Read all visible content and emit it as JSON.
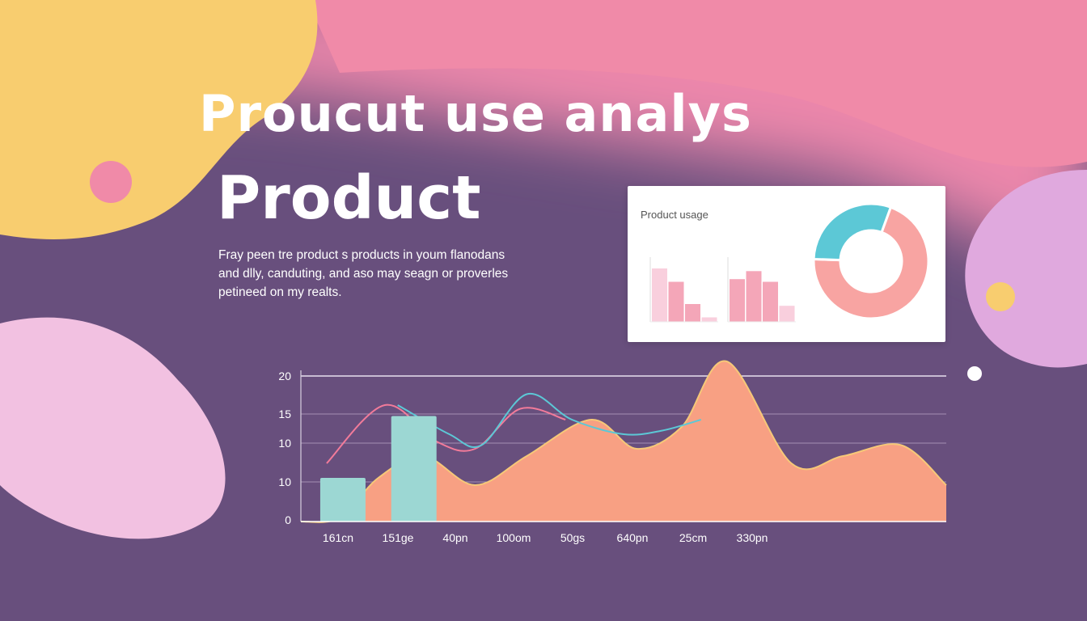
{
  "heading": {
    "title": "Proucut use analys",
    "subtitle": "Product"
  },
  "description": {
    "line1": "Fray peen tre product s products in youm flanodans",
    "line2": "and dlly, canduting, and aso may seagn or proverles",
    "line3": "petineed on my realts."
  },
  "colors": {
    "background": "#684f7d",
    "yellow": "#f8cd6f",
    "pink": "#f08aa8",
    "area": "#f8a083",
    "bar": "#9cd7d3",
    "line_pink": "#f27b9a",
    "line_blue": "#5cc8d6"
  },
  "chart_data": [
    {
      "type": "area",
      "title": "",
      "xlabel": "",
      "ylabel": "",
      "y_tick_labels": [
        "20",
        "15",
        "10",
        "10",
        "0"
      ],
      "categories": [
        "161cn",
        "151ge",
        "40pn",
        "100om",
        "50gs",
        "640pn",
        "25cm",
        "330pn"
      ],
      "bars": {
        "x_positions": [
          0.3,
          1.4
        ],
        "values": [
          6,
          14.5
        ]
      },
      "area": {
        "x": [
          0,
          0.6,
          1.2,
          1.9,
          2.7,
          3.5,
          4.5,
          5.2,
          5.9,
          6.6,
          7.6,
          8.4,
          9.3,
          10.0
        ],
        "y": [
          0,
          0.5,
          6,
          9,
          5,
          9,
          14,
          10,
          13,
          22,
          8,
          9,
          10.5,
          5
        ]
      },
      "series": [
        {
          "x": [
            0.4,
            1.3,
            2.1,
            2.7,
            3.4,
            4.1
          ],
          "y": [
            8,
            16,
            11,
            10,
            15.5,
            14
          ]
        },
        {
          "x": [
            1.5,
            2.3,
            2.8,
            3.5,
            4.2,
            5.0,
            5.6,
            6.2
          ],
          "y": [
            16,
            12,
            10.5,
            17.5,
            14,
            12,
            12.5,
            14
          ]
        }
      ],
      "ylim": [
        0,
        20
      ],
      "grid": true
    },
    {
      "type": "bar",
      "title": "Product usage",
      "groups": [
        {
          "values": [
            6,
            4.5,
            2,
            0.5
          ]
        },
        {
          "values": [
            4.8,
            5.7,
            4.5,
            1.8
          ]
        }
      ]
    },
    {
      "type": "pie",
      "title": "Product usage",
      "values": [
        70,
        30
      ],
      "colors": [
        "#f8a4a2",
        "#5cc8d6"
      ]
    }
  ]
}
